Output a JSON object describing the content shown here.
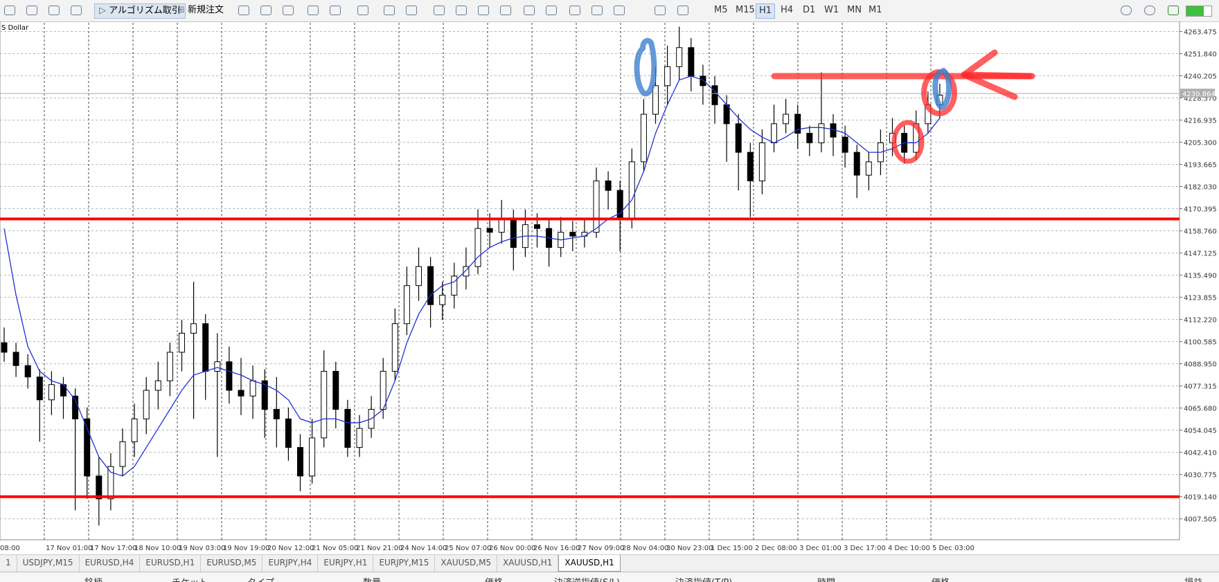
{
  "toolbar": {
    "algo_button": "アルゴリズム取引",
    "new_order": "新規注文",
    "timeframes": [
      "M5",
      "M15",
      "H1",
      "H4",
      "D1",
      "W1",
      "MN",
      "M1"
    ],
    "active_timeframe": "H1"
  },
  "chart_data": {
    "type": "candlestick",
    "subtitle": "S Dollar",
    "ylim": [
      3996.5,
      4268
    ],
    "yticks": [
      {
        "value": 4263.475,
        "label": "4263.475"
      },
      {
        "value": 4251.84,
        "label": "4251.840"
      },
      {
        "value": 4240.205,
        "label": "4240.205"
      },
      {
        "value": 4228.57,
        "label": "4228.570"
      },
      {
        "value": 4216.935,
        "label": "4216.935"
      },
      {
        "value": 4205.3,
        "label": "4205.300"
      },
      {
        "value": 4193.665,
        "label": "4193.665"
      },
      {
        "value": 4182.03,
        "label": "4182.030"
      },
      {
        "value": 4170.395,
        "label": "4170.395"
      },
      {
        "value": 4158.76,
        "label": "4158.760"
      },
      {
        "value": 4147.125,
        "label": "4147.125"
      },
      {
        "value": 4135.49,
        "label": "4135.490"
      },
      {
        "value": 4123.855,
        "label": "4123.855"
      },
      {
        "value": 4112.22,
        "label": "4112.220"
      },
      {
        "value": 4100.585,
        "label": "4100.585"
      },
      {
        "value": 4088.95,
        "label": "4088.950"
      },
      {
        "value": 4077.315,
        "label": "4077.315"
      },
      {
        "value": 4065.68,
        "label": "4065.680"
      },
      {
        "value": 4054.045,
        "label": "4054.045"
      },
      {
        "value": 4042.41,
        "label": "4042.410"
      },
      {
        "value": 4030.775,
        "label": "4030.775"
      },
      {
        "value": 4019.14,
        "label": "4019.140"
      },
      {
        "value": 4007.505,
        "label": "4007.505"
      }
    ],
    "grid": true,
    "time_labels": [
      "08:00",
      "17 Nov 01:00",
      "17 Nov 17:00",
      "18 Nov 10:00",
      "19 Nov 03:00",
      "19 Nov 19:00",
      "20 Nov 12:00",
      "21 Nov 05:00",
      "21 Nov 21:00",
      "24 Nov 14:00",
      "25 Nov 07:00",
      "26 Nov 00:00",
      "26 Nov 16:00",
      "27 Nov 09:00",
      "28 Nov 04:00",
      "30 Nov 23:00",
      "1 Dec 15:00",
      "2 Dec 08:00",
      "3 Dec 01:00",
      "3 Dec 17:00",
      "4 Dec 10:00",
      "5 Dec 03:00"
    ],
    "candles": [
      [
        4100,
        4108,
        4090,
        4095
      ],
      [
        4095,
        4100,
        4082,
        4088
      ],
      [
        4088,
        4094,
        4076,
        4082
      ],
      [
        4082,
        4086,
        4048,
        4070
      ],
      [
        4070,
        4085,
        4062,
        4078
      ],
      [
        4078,
        4082,
        4060,
        4072
      ],
      [
        4072,
        4076,
        4012,
        4060
      ],
      [
        4060,
        4066,
        4018,
        4030
      ],
      [
        4030,
        4040,
        4004,
        4018
      ],
      [
        4018,
        4042,
        4012,
        4035
      ],
      [
        4035,
        4055,
        4030,
        4048
      ],
      [
        4048,
        4068,
        4040,
        4060
      ],
      [
        4060,
        4082,
        4052,
        4075
      ],
      [
        4075,
        4090,
        4065,
        4080
      ],
      [
        4080,
        4100,
        4072,
        4095
      ],
      [
        4095,
        4112,
        4085,
        4105
      ],
      [
        4105,
        4132,
        4060,
        4110
      ],
      [
        4110,
        4115,
        4070,
        4085
      ],
      [
        4085,
        4105,
        4040,
        4090
      ],
      [
        4090,
        4098,
        4068,
        4075
      ],
      [
        4075,
        4092,
        4062,
        4072
      ],
      [
        4072,
        4088,
        4060,
        4080
      ],
      [
        4080,
        4086,
        4050,
        4065
      ],
      [
        4065,
        4082,
        4045,
        4060
      ],
      [
        4060,
        4066,
        4038,
        4045
      ],
      [
        4045,
        4052,
        4022,
        4030
      ],
      [
        4030,
        4060,
        4026,
        4050
      ],
      [
        4050,
        4096,
        4045,
        4085
      ],
      [
        4085,
        4090,
        4055,
        4065
      ],
      [
        4065,
        4070,
        4040,
        4045
      ],
      [
        4045,
        4062,
        4040,
        4055
      ],
      [
        4055,
        4072,
        4050,
        4065
      ],
      [
        4065,
        4092,
        4060,
        4085
      ],
      [
        4085,
        4118,
        4080,
        4110
      ],
      [
        4110,
        4140,
        4104,
        4130
      ],
      [
        4130,
        4150,
        4122,
        4140
      ],
      [
        4140,
        4145,
        4108,
        4120
      ],
      [
        4120,
        4132,
        4112,
        4125
      ],
      [
        4125,
        4142,
        4118,
        4135
      ],
      [
        4135,
        4150,
        4128,
        4140
      ],
      [
        4140,
        4170,
        4136,
        4160
      ],
      [
        4160,
        4168,
        4150,
        4158
      ],
      [
        4158,
        4175,
        4152,
        4165
      ],
      [
        4165,
        4170,
        4138,
        4150
      ],
      [
        4150,
        4170,
        4145,
        4162
      ],
      [
        4162,
        4168,
        4150,
        4160
      ],
      [
        4160,
        4165,
        4140,
        4150
      ],
      [
        4150,
        4166,
        4145,
        4158
      ],
      [
        4158,
        4164,
        4148,
        4156
      ],
      [
        4156,
        4165,
        4150,
        4158
      ],
      [
        4158,
        4192,
        4155,
        4185
      ],
      [
        4185,
        4190,
        4170,
        4180
      ],
      [
        4180,
        4185,
        4148,
        4165
      ],
      [
        4165,
        4202,
        4160,
        4195
      ],
      [
        4195,
        4228,
        4190,
        4220
      ],
      [
        4220,
        4245,
        4215,
        4235
      ],
      [
        4235,
        4256,
        4225,
        4245
      ],
      [
        4245,
        4266,
        4238,
        4255
      ],
      [
        4255,
        4260,
        4232,
        4240
      ],
      [
        4240,
        4246,
        4225,
        4235
      ],
      [
        4235,
        4240,
        4215,
        4225
      ],
      [
        4225,
        4230,
        4195,
        4215
      ],
      [
        4215,
        4220,
        4180,
        4200
      ],
      [
        4200,
        4205,
        4166,
        4185
      ],
      [
        4185,
        4212,
        4178,
        4205
      ],
      [
        4205,
        4225,
        4200,
        4215
      ],
      [
        4215,
        4228,
        4210,
        4220
      ],
      [
        4220,
        4225,
        4202,
        4210
      ],
      [
        4210,
        4214,
        4198,
        4205
      ],
      [
        4205,
        4242,
        4200,
        4215
      ],
      [
        4215,
        4220,
        4198,
        4208
      ],
      [
        4208,
        4214,
        4192,
        4200
      ],
      [
        4200,
        4204,
        4176,
        4188
      ],
      [
        4188,
        4200,
        4180,
        4195
      ],
      [
        4195,
        4212,
        4188,
        4205
      ],
      [
        4205,
        4218,
        4198,
        4210
      ],
      [
        4210,
        4214,
        4194,
        4200
      ],
      [
        4200,
        4222,
        4196,
        4215
      ],
      [
        4215,
        4232,
        4210,
        4225
      ],
      [
        4225,
        4236,
        4218,
        4230
      ]
    ],
    "ma_color": "#1f2fd6",
    "ma_values": [
      4160,
      4125,
      4098,
      4085,
      4080,
      4078,
      4070,
      4055,
      4040,
      4032,
      4030,
      4035,
      4045,
      4055,
      4065,
      4075,
      4083,
      4085,
      4087,
      4085,
      4083,
      4080,
      4078,
      4075,
      4070,
      4060,
      4058,
      4060,
      4060,
      4058,
      4058,
      4060,
      4065,
      4080,
      4100,
      4115,
      4125,
      4130,
      4132,
      4138,
      4145,
      4150,
      4153,
      4155,
      4156,
      4156,
      4155,
      4154,
      4155,
      4156,
      4160,
      4165,
      4168,
      4175,
      4190,
      4210,
      4225,
      4238,
      4240,
      4238,
      4232,
      4225,
      4218,
      4212,
      4208,
      4205,
      4208,
      4212,
      4213,
      4213,
      4212,
      4210,
      4205,
      4200,
      4200,
      4202,
      4205,
      4205,
      4210,
      4218
    ],
    "hlines": [
      {
        "value": 4165,
        "color": "#ff0000"
      },
      {
        "value": 4019.14,
        "color": "#ff0000"
      }
    ],
    "current_price": 4230.864
  },
  "tabs": [
    "1",
    "USDJPY,M15",
    "EURUSD,H4",
    "EURUSD,H1",
    "EURUSD,M5",
    "EURJPY,H4",
    "EURJPY,H1",
    "EURJPY,M15",
    "XAUUSD,M5",
    "XAUUSD,H1",
    "XAUUSD,H1"
  ],
  "active_tab": 10,
  "table_header": [
    "銘柄",
    "チケット",
    "タイプ",
    "数量",
    "価格",
    "決済逆指値(S/L)",
    "決済指値(T/P)",
    "時間",
    "価格",
    "損益"
  ]
}
